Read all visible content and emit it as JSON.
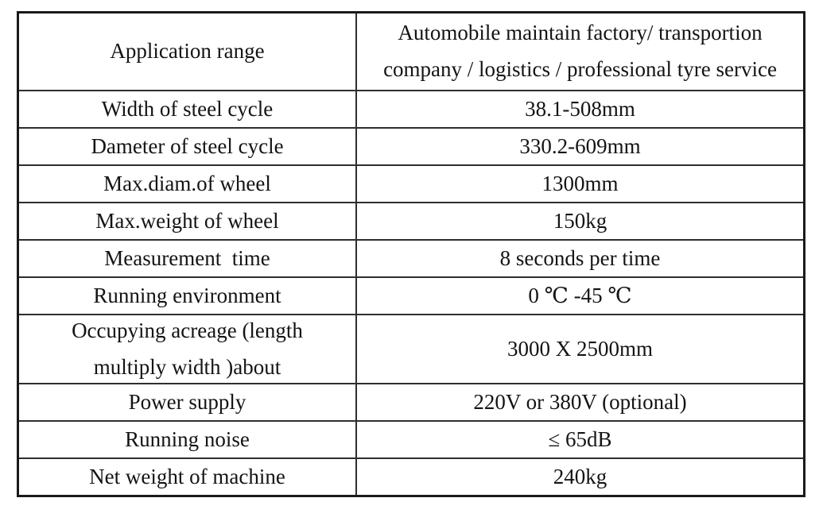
{
  "table": {
    "rows": [
      {
        "label": "Application range",
        "value": "Automobile maintain factory/ transportion\ncompany / logistics / professional tyre service"
      },
      {
        "label": "Width of steel cycle",
        "value": "38.1-508mm"
      },
      {
        "label": "Dameter of steel cycle",
        "value": "330.2-609mm"
      },
      {
        "label": "Max.diam.of wheel",
        "value": "1300mm"
      },
      {
        "label": "Max.weight of wheel",
        "value": "150kg"
      },
      {
        "label": "Measurement  time",
        "value": "8 seconds per time"
      },
      {
        "label": "Running environment",
        "value": "0 ℃ -45 ℃"
      },
      {
        "label": "Occupying acreage (length\nmultiply width )about",
        "value": "3000 X 2500mm"
      },
      {
        "label": "Power supply",
        "value": "220V or 380V (optional)"
      },
      {
        "label": "Running noise",
        "value": "≤ 65dB"
      },
      {
        "label": "Net weight of machine",
        "value": "240kg"
      }
    ]
  }
}
